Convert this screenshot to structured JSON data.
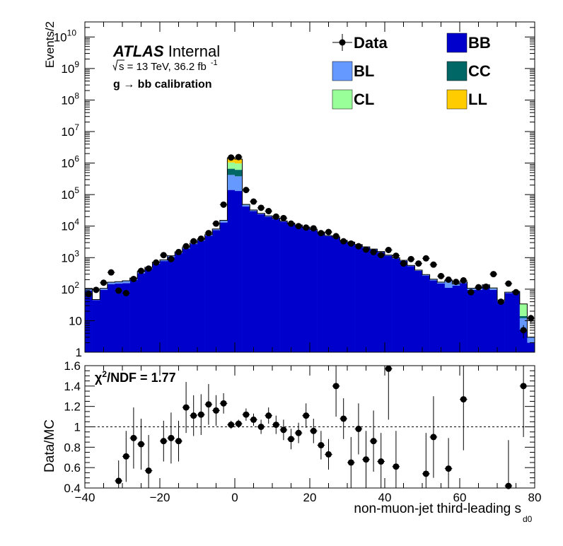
{
  "chart_data": [
    {
      "type": "area",
      "panel": "main",
      "ylabel": "Events/2",
      "yscale": "log",
      "ylim": [
        1,
        30000000000
      ],
      "xlim": [
        -40,
        80
      ],
      "bin_width": 2,
      "y_tick_labels": [
        {
          "value": 1,
          "base": "1",
          "exp": ""
        },
        {
          "value": 10,
          "base": "10",
          "exp": ""
        },
        {
          "value": 100,
          "base": "10",
          "exp": "2"
        },
        {
          "value": 1000,
          "base": "10",
          "exp": "3"
        },
        {
          "value": 10000,
          "base": "10",
          "exp": "4"
        },
        {
          "value": 100000,
          "base": "10",
          "exp": "5"
        },
        {
          "value": 1000000,
          "base": "10",
          "exp": "6"
        },
        {
          "value": 10000000,
          "base": "10",
          "exp": "7"
        },
        {
          "value": 100000000,
          "base": "10",
          "exp": "8"
        },
        {
          "value": 1000000000,
          "base": "10",
          "exp": "9"
        },
        {
          "value": 10000000000,
          "base": "10",
          "exp": "10"
        }
      ],
      "bin_lows": [
        -40,
        -38,
        -36,
        -34,
        -32,
        -30,
        -28,
        -26,
        -24,
        -22,
        -20,
        -18,
        -16,
        -14,
        -12,
        -10,
        -8,
        -6,
        -4,
        -2,
        0,
        2,
        4,
        6,
        8,
        10,
        12,
        14,
        16,
        18,
        20,
        22,
        24,
        26,
        28,
        30,
        32,
        34,
        36,
        38,
        40,
        42,
        44,
        46,
        48,
        50,
        52,
        54,
        56,
        58,
        60,
        62,
        64,
        66,
        68,
        70,
        72,
        74,
        76,
        78
      ],
      "stack_order": [
        "BB",
        "BL",
        "CC",
        "CL",
        "LL"
      ],
      "series": [
        {
          "name": "BB",
          "values": [
            90,
            45,
            95,
            145,
            150,
            155,
            195,
            320,
            440,
            650,
            780,
            1050,
            1400,
            1950,
            2700,
            3500,
            5000,
            7500,
            13000,
            140000,
            130000,
            42000,
            30000,
            24000,
            20000,
            17000,
            14000,
            12000,
            10500,
            9000,
            7500,
            6200,
            4800,
            4300,
            3400,
            3000,
            2500,
            2100,
            1800,
            1500,
            1150,
            950,
            790,
            540,
            380,
            270,
            190,
            150,
            110,
            130,
            155,
            95,
            95,
            125,
            95,
            42,
            75,
            80,
            5,
            2
          ]
        },
        {
          "name": "BL",
          "values": [
            15,
            2,
            10,
            20,
            22,
            28,
            30,
            40,
            50,
            60,
            70,
            90,
            120,
            150,
            200,
            250,
            350,
            600,
            1800,
            280000,
            250000,
            5000,
            2000,
            1200,
            1000,
            700,
            500,
            400,
            300,
            280,
            250,
            220,
            180,
            150,
            120,
            110,
            100,
            90,
            70,
            60,
            50,
            40,
            30,
            25,
            20,
            18,
            15,
            15,
            80,
            15,
            15,
            10,
            10,
            10,
            10,
            3,
            5,
            5,
            7,
            1
          ]
        },
        {
          "name": "CC",
          "values": [
            1,
            0,
            1,
            1,
            1,
            1,
            1,
            2,
            2,
            3,
            4,
            5,
            6,
            8,
            10,
            12,
            15,
            25,
            300,
            240000,
            230000,
            1500,
            400,
            200,
            150,
            100,
            80,
            70,
            60,
            50,
            40,
            30,
            25,
            20,
            15,
            12,
            10,
            8,
            6,
            5,
            4,
            3,
            2,
            2,
            1,
            1,
            1,
            1,
            1,
            1,
            1,
            1,
            1,
            1,
            1,
            0,
            0,
            0,
            2,
            0
          ]
        },
        {
          "name": "CL",
          "values": [
            0,
            0,
            0,
            0,
            0,
            0,
            0,
            0,
            0,
            1,
            1,
            1,
            1,
            1,
            2,
            2,
            3,
            5,
            100,
            380000,
            360000,
            400,
            100,
            50,
            30,
            20,
            15,
            10,
            8,
            6,
            5,
            4,
            3,
            3,
            2,
            2,
            1,
            1,
            1,
            1,
            1,
            1,
            1,
            1,
            1,
            1,
            1,
            1,
            1,
            1,
            1,
            1,
            1,
            1,
            3,
            0,
            0,
            0,
            20,
            0
          ]
        },
        {
          "name": "LL",
          "values": [
            0,
            0,
            0,
            0,
            0,
            0,
            0,
            0,
            0,
            0,
            0,
            0,
            0,
            0,
            0,
            0,
            1,
            1,
            40,
            380000,
            360000,
            100,
            20,
            10,
            5,
            3,
            2,
            1,
            1,
            1,
            1,
            0,
            0,
            0,
            0,
            0,
            0,
            0,
            0,
            0,
            0,
            0,
            0,
            0,
            0,
            0,
            0,
            0,
            0,
            0,
            0,
            0,
            0,
            0,
            0,
            0,
            0,
            0,
            0,
            0
          ]
        },
        {
          "name": "Data",
          "x": [
            -39,
            -37,
            -35,
            -33,
            -31,
            -29,
            -27,
            -25,
            -23,
            -21,
            -19,
            -17,
            -15,
            -13,
            -11,
            -9,
            -7,
            -5,
            -3,
            -1,
            1,
            3,
            5,
            7,
            9,
            11,
            13,
            15,
            17,
            19,
            21,
            23,
            25,
            27,
            29,
            31,
            33,
            35,
            37,
            39,
            41,
            43,
            45,
            47,
            49,
            51,
            53,
            55,
            57,
            59,
            61,
            63,
            65,
            67,
            69,
            71,
            73,
            75,
            77,
            79
          ],
          "values": [
            70,
            95,
            160,
            340,
            90,
            75,
            210,
            380,
            450,
            700,
            1200,
            900,
            1500,
            2300,
            3300,
            4000,
            6000,
            12000,
            48000,
            1500000,
            1550000,
            140000,
            60000,
            38000,
            30000,
            20000,
            18000,
            12000,
            10000,
            9000,
            8500,
            6000,
            6500,
            4800,
            3300,
            2800,
            2300,
            1800,
            1500,
            1200,
            1750,
            1150,
            650,
            900,
            650,
            950,
            600,
            260,
            200,
            170,
            190,
            80,
            115,
            120,
            300,
            40,
            150,
            80,
            5,
            12
          ]
        }
      ]
    },
    {
      "type": "scatter",
      "panel": "ratio",
      "xlabel": "non-muon-jet third-leading s",
      "xlabel_subscript": "d0",
      "ylabel": "Data/MC",
      "xlim": [
        -40,
        80
      ],
      "ylim": [
        0.4,
        1.6
      ],
      "reference_line": 1,
      "x_ticks": [
        -40,
        -20,
        0,
        20,
        40,
        60,
        80
      ],
      "y_ticks": [
        0.4,
        0.6,
        0.8,
        1,
        1.2,
        1.4,
        1.6
      ],
      "x": [
        -31,
        -29,
        -27,
        -25,
        -23,
        -19,
        -17,
        -15,
        -13,
        -11,
        -9,
        -7,
        -5,
        -3,
        -1,
        1,
        3,
        5,
        7,
        9,
        11,
        13,
        15,
        17,
        19,
        21,
        23,
        25,
        27,
        29,
        31,
        33,
        35,
        37,
        39,
        41,
        43,
        51,
        53,
        57,
        61,
        73,
        77
      ],
      "values": [
        0.47,
        0.71,
        0.89,
        0.83,
        0.57,
        0.86,
        0.89,
        0.86,
        1.19,
        1.11,
        1.12,
        1.22,
        1.16,
        1.23,
        1.02,
        1.03,
        1.12,
        1.07,
        1.0,
        1.11,
        1.02,
        0.97,
        0.88,
        0.94,
        1.11,
        0.96,
        0.82,
        0.73,
        1.4,
        1.08,
        0.65,
        0.98,
        0.68,
        0.86,
        0.66,
        1.57,
        0.61,
        0.54,
        0.9,
        0.59,
        1.27,
        0.42,
        1.4
      ],
      "errors": [
        0.2,
        0.25,
        0.3,
        0.25,
        0.35,
        0.2,
        0.25,
        0.2,
        0.25,
        0.2,
        0.2,
        0.2,
        0.15,
        0.1,
        0.04,
        0.04,
        0.06,
        0.06,
        0.07,
        0.08,
        0.09,
        0.1,
        0.1,
        0.1,
        0.12,
        0.12,
        0.14,
        0.15,
        0.3,
        0.2,
        0.25,
        0.25,
        0.28,
        0.3,
        0.28,
        0.5,
        0.35,
        0.4,
        0.4,
        0.3,
        0.5,
        0.45,
        0.5
      ]
    }
  ],
  "legend": [
    {
      "name": "Data",
      "type": "marker",
      "color": "#000000"
    },
    {
      "name": "BB",
      "type": "box",
      "color": "#0000cc"
    },
    {
      "name": "BL",
      "type": "box",
      "color": "#6699ff"
    },
    {
      "name": "CC",
      "type": "box",
      "color": "#006666"
    },
    {
      "name": "CL",
      "type": "box",
      "color": "#99ff99"
    },
    {
      "name": "LL",
      "type": "box",
      "color": "#ffcc00"
    }
  ],
  "colors": {
    "BB": "#0000cc",
    "BL": "#6699ff",
    "CC": "#006666",
    "CL": "#99ff99",
    "LL": "#ffcc00",
    "Data": "#000000"
  },
  "labels": {
    "atlas": "ATLAS",
    "internal": "Internal",
    "sqrt_s": "s = 13 TeV, 36.2 fb",
    "lumi_exp": "-1",
    "calibration": "g  → bb calibration",
    "chi2_prefix": "χ",
    "chi2_exp": "2",
    "chi2_value": "/NDF = 1.77"
  }
}
